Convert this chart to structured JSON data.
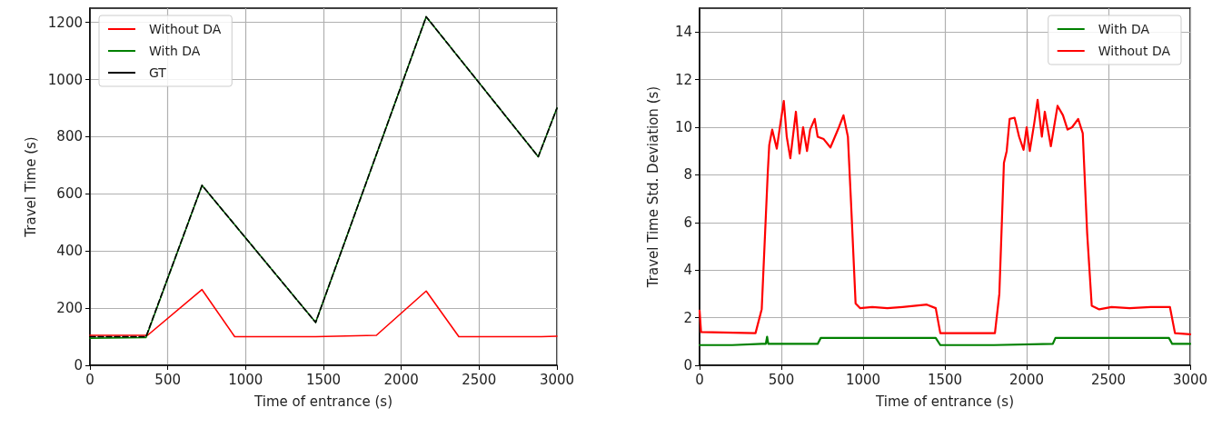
{
  "chart_data": [
    {
      "type": "line",
      "xlabel": "Time of entrance (s)",
      "ylabel": "Travel Time (s)",
      "xlim": [
        0,
        3000
      ],
      "xticks": [
        0,
        500,
        1000,
        1500,
        2000,
        2500,
        3000
      ],
      "ylim": [
        0,
        1250
      ],
      "yticks": [
        0,
        200,
        400,
        600,
        800,
        1000,
        1200
      ],
      "grid": true,
      "legend": "top left",
      "marker": "none",
      "series": [
        {
          "name": "Without DA",
          "color": "#ff0000",
          "x": [
            0,
            370,
            720,
            930,
            1450,
            1840,
            2160,
            2370,
            2900,
            3000
          ],
          "values": [
            105,
            105,
            265,
            100,
            100,
            105,
            260,
            100,
            100,
            102
          ]
        },
        {
          "name": "With DA",
          "color": "#008000",
          "x": [
            0,
            360,
            720,
            1450,
            2160,
            2880,
            3000
          ],
          "values": [
            95,
            97,
            630,
            150,
            1220,
            730,
            900
          ]
        },
        {
          "name": "GT",
          "color": "#000000",
          "line_style": "dashed",
          "x": [
            0,
            360,
            720,
            1450,
            2160,
            2880,
            3000
          ],
          "values": [
            100,
            100,
            630,
            150,
            1220,
            730,
            900
          ]
        }
      ]
    },
    {
      "type": "line",
      "xlabel": "Time of entrance (s)",
      "ylabel": "Travel Time Std. Deviation (s)",
      "xlim": [
        0,
        3000
      ],
      "xticks": [
        0,
        500,
        1000,
        1500,
        2000,
        2500,
        3000
      ],
      "ylim": [
        0,
        15
      ],
      "yticks": [
        0,
        2,
        4,
        6,
        8,
        10,
        12,
        14
      ],
      "grid": true,
      "legend": "top right",
      "marker": "none",
      "series": [
        {
          "name": "With DA",
          "color": "#008000",
          "x": [
            0,
            200,
            380,
            405,
            413,
            420,
            722,
            741,
            1000,
            1300,
            1444,
            1472,
            1800,
            2160,
            2176,
            2500,
            2870,
            2890,
            3000
          ],
          "values": [
            0.85,
            0.85,
            0.9,
            0.9,
            1.2,
            0.9,
            0.9,
            1.15,
            1.15,
            1.15,
            1.15,
            0.85,
            0.85,
            0.9,
            1.15,
            1.15,
            1.15,
            0.9,
            0.9
          ]
        },
        {
          "name": "Without DA",
          "color": "#ff0000",
          "x": [
            0,
            9,
            342,
            380,
            417,
            426,
            444,
            472,
            491,
            515,
            533,
            555,
            589,
            611,
            633,
            657,
            676,
            704,
            722,
            759,
            800,
            852,
            880,
            907,
            926,
            954,
            981,
            1056,
            1148,
            1241,
            1389,
            1444,
            1472,
            1611,
            1806,
            1833,
            1861,
            1878,
            1896,
            1926,
            1954,
            1981,
            2000,
            2019,
            2046,
            2067,
            2093,
            2111,
            2148,
            2189,
            2222,
            2250,
            2278,
            2315,
            2343,
            2370,
            2398,
            2444,
            2519,
            2630,
            2759,
            2876,
            2907,
            3000
          ],
          "values": [
            2.3,
            1.4,
            1.35,
            2.36,
            8.1,
            9.25,
            9.9,
            9.1,
            10.0,
            11.1,
            9.6,
            8.7,
            10.65,
            8.9,
            10.0,
            9.0,
            9.9,
            10.35,
            9.6,
            9.5,
            9.15,
            10.0,
            10.5,
            9.6,
            6.85,
            2.6,
            2.4,
            2.45,
            2.4,
            2.45,
            2.55,
            2.4,
            1.35,
            1.35,
            1.35,
            3.0,
            8.5,
            9.0,
            10.35,
            10.4,
            9.6,
            9.05,
            10.0,
            9.0,
            10.15,
            11.15,
            9.6,
            10.65,
            9.2,
            10.9,
            10.5,
            9.9,
            10.0,
            10.35,
            9.75,
            5.55,
            2.5,
            2.35,
            2.45,
            2.4,
            2.45,
            2.45,
            1.35,
            1.3
          ]
        }
      ]
    }
  ]
}
